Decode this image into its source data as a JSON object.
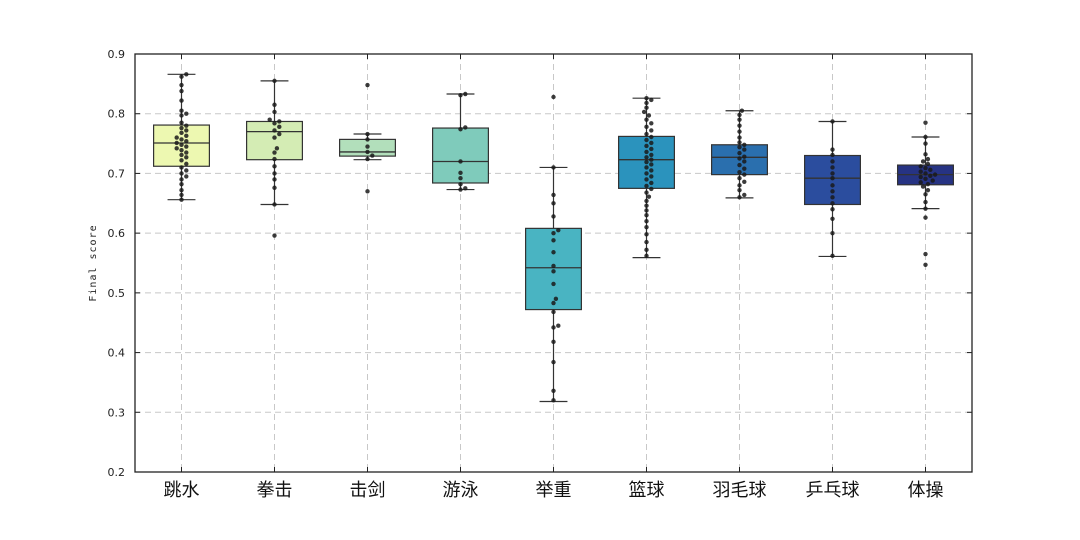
{
  "chart_data": {
    "type": "box",
    "ylabel": "Final score",
    "ylim": [
      0.2,
      0.9
    ],
    "yticks": [
      0.2,
      0.3,
      0.4,
      0.5,
      0.6,
      0.7,
      0.8,
      0.9
    ],
    "grid": true,
    "categories": [
      "跳水",
      "拳击",
      "击剑",
      "游泳",
      "举重",
      "篮球",
      "羽毛球",
      "乒乓球",
      "体操"
    ],
    "colors": [
      "#edf8b1",
      "#d4ecb4",
      "#b2dfbb",
      "#7fcbbb",
      "#49b4c2",
      "#2b93bd",
      "#2a6fae",
      "#2b4d9e",
      "#263383"
    ],
    "boxes": [
      {
        "whisker_low": 0.656,
        "q1": 0.712,
        "median": 0.751,
        "q3": 0.781,
        "whisker_high": 0.866,
        "points": [
          0.866,
          0.862,
          0.848,
          0.838,
          0.822,
          0.805,
          0.8,
          0.797,
          0.785,
          0.78,
          0.776,
          0.772,
          0.768,
          0.763,
          0.76,
          0.757,
          0.754,
          0.751,
          0.748,
          0.745,
          0.742,
          0.739,
          0.735,
          0.731,
          0.727,
          0.722,
          0.716,
          0.71,
          0.705,
          0.7,
          0.695,
          0.69,
          0.682,
          0.672,
          0.664,
          0.656
        ]
      },
      {
        "whisker_low": 0.648,
        "q1": 0.723,
        "median": 0.77,
        "q3": 0.787,
        "whisker_high": 0.855,
        "points": [
          0.855,
          0.815,
          0.803,
          0.79,
          0.787,
          0.784,
          0.778,
          0.772,
          0.766,
          0.76,
          0.742,
          0.735,
          0.724,
          0.712,
          0.7,
          0.69,
          0.676,
          0.648,
          0.596
        ]
      },
      {
        "whisker_low": 0.723,
        "q1": 0.729,
        "median": 0.736,
        "q3": 0.757,
        "whisker_high": 0.766,
        "points": [
          0.848,
          0.766,
          0.757,
          0.745,
          0.736,
          0.73,
          0.724,
          0.67
        ]
      },
      {
        "whisker_low": 0.673,
        "q1": 0.684,
        "median": 0.72,
        "q3": 0.776,
        "whisker_high": 0.833,
        "points": [
          0.833,
          0.831,
          0.777,
          0.774,
          0.72,
          0.701,
          0.692,
          0.682,
          0.675,
          0.673
        ]
      },
      {
        "whisker_low": 0.318,
        "q1": 0.472,
        "median": 0.542,
        "q3": 0.608,
        "whisker_high": 0.71,
        "points": [
          0.828,
          0.71,
          0.664,
          0.65,
          0.628,
          0.605,
          0.6,
          0.588,
          0.568,
          0.545,
          0.536,
          0.515,
          0.49,
          0.483,
          0.468,
          0.445,
          0.442,
          0.418,
          0.384,
          0.336,
          0.32
        ]
      },
      {
        "whisker_low": 0.559,
        "q1": 0.675,
        "median": 0.723,
        "q3": 0.762,
        "whisker_high": 0.826,
        "points": [
          0.826,
          0.823,
          0.818,
          0.81,
          0.803,
          0.797,
          0.79,
          0.784,
          0.778,
          0.772,
          0.766,
          0.761,
          0.756,
          0.751,
          0.746,
          0.741,
          0.736,
          0.731,
          0.727,
          0.723,
          0.719,
          0.715,
          0.71,
          0.705,
          0.7,
          0.695,
          0.69,
          0.684,
          0.679,
          0.674,
          0.668,
          0.661,
          0.654,
          0.646,
          0.638,
          0.63,
          0.62,
          0.61,
          0.598,
          0.585,
          0.572,
          0.562
        ]
      },
      {
        "whisker_low": 0.659,
        "q1": 0.698,
        "median": 0.727,
        "q3": 0.748,
        "whisker_high": 0.805,
        "points": [
          0.805,
          0.798,
          0.79,
          0.78,
          0.77,
          0.76,
          0.752,
          0.748,
          0.744,
          0.74,
          0.734,
          0.728,
          0.725,
          0.72,
          0.714,
          0.708,
          0.702,
          0.698,
          0.692,
          0.686,
          0.68,
          0.672,
          0.664,
          0.66
        ]
      },
      {
        "whisker_low": 0.561,
        "q1": 0.648,
        "median": 0.692,
        "q3": 0.73,
        "whisker_high": 0.787,
        "points": [
          0.787,
          0.74,
          0.731,
          0.72,
          0.71,
          0.7,
          0.692,
          0.68,
          0.67,
          0.66,
          0.65,
          0.64,
          0.624,
          0.6,
          0.562
        ]
      },
      {
        "whisker_low": 0.641,
        "q1": 0.681,
        "median": 0.698,
        "q3": 0.714,
        "whisker_high": 0.761,
        "points": [
          0.785,
          0.761,
          0.75,
          0.732,
          0.724,
          0.72,
          0.716,
          0.712,
          0.709,
          0.706,
          0.703,
          0.7,
          0.698,
          0.696,
          0.694,
          0.691,
          0.688,
          0.685,
          0.682,
          0.678,
          0.672,
          0.665,
          0.652,
          0.641,
          0.626,
          0.565,
          0.547
        ]
      }
    ]
  }
}
